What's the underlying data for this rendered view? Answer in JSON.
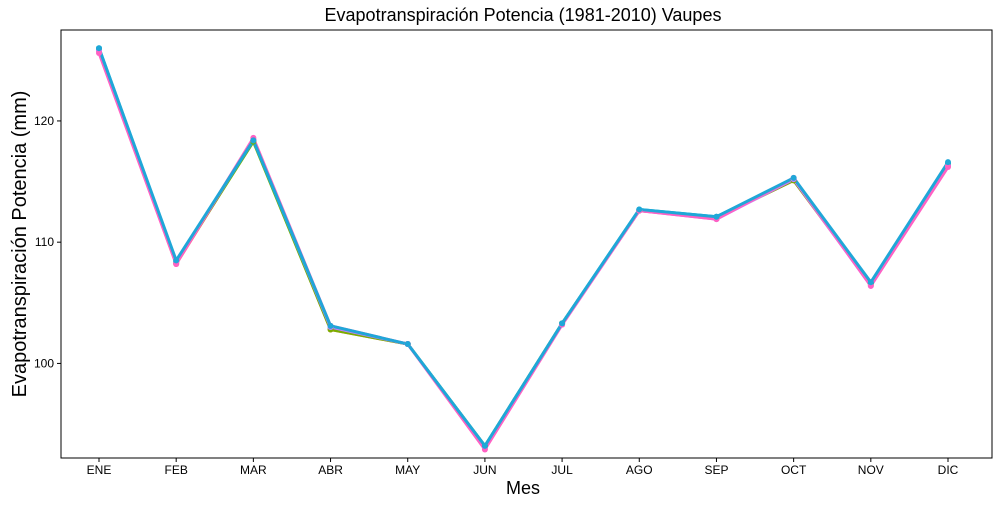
{
  "chart_data": {
    "type": "line",
    "title": "Evapotranspiración Potencia (1981-2010)  Vaupes",
    "xlabel": "Mes",
    "ylabel": "Evapotranspiración Potencia  (mm)",
    "categories": [
      "ENE",
      "FEB",
      "MAR",
      "ABR",
      "MAY",
      "JUN",
      "JUL",
      "AGO",
      "SEP",
      "OCT",
      "NOV",
      "DIC"
    ],
    "yticks": [
      100,
      110,
      120
    ],
    "ylim": [
      92.2,
      127.5
    ],
    "grid": false,
    "legend": "none",
    "series": [
      {
        "color": "#F8766D",
        "values": [
          125.8,
          108.2,
          118.4,
          102.8,
          101.6,
          93.1,
          103.3,
          112.6,
          112.0,
          115.1,
          106.5,
          116.3
        ]
      },
      {
        "color": "#7CAE00",
        "values": [
          125.9,
          108.3,
          118.3,
          102.8,
          101.6,
          93.2,
          103.3,
          112.6,
          112.0,
          115.1,
          106.6,
          116.4
        ]
      },
      {
        "color": "#00BFC4",
        "values": [
          126.0,
          108.4,
          118.4,
          103.0,
          101.6,
          93.2,
          103.3,
          112.7,
          112.1,
          115.2,
          106.6,
          116.5
        ]
      },
      {
        "color": "#C77CFF",
        "values": [
          125.8,
          108.3,
          118.5,
          103.0,
          101.6,
          93.0,
          103.2,
          112.6,
          111.9,
          115.2,
          106.4,
          116.3
        ]
      },
      {
        "color": "#FF61C3",
        "values": [
          125.6,
          108.2,
          118.6,
          103.1,
          101.6,
          92.9,
          103.2,
          112.6,
          111.9,
          115.3,
          106.4,
          116.2
        ]
      },
      {
        "color": "#1FA7D8",
        "values": [
          126.0,
          108.5,
          118.4,
          103.1,
          101.6,
          93.2,
          103.3,
          112.7,
          112.1,
          115.3,
          106.7,
          116.6
        ]
      }
    ]
  }
}
